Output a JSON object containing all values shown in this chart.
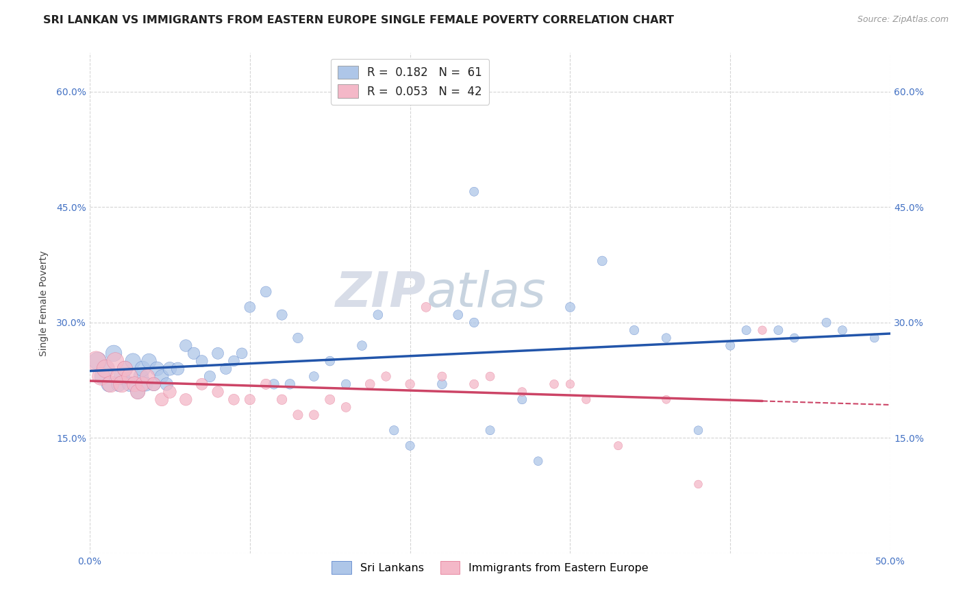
{
  "title": "SRI LANKAN VS IMMIGRANTS FROM EASTERN EUROPE SINGLE FEMALE POVERTY CORRELATION CHART",
  "source": "Source: ZipAtlas.com",
  "ylabel": "Single Female Poverty",
  "xlim": [
    0.0,
    0.5
  ],
  "ylim": [
    0.0,
    0.65
  ],
  "x_ticks": [
    0.0,
    0.1,
    0.2,
    0.3,
    0.4,
    0.5
  ],
  "x_tick_labels": [
    "0.0%",
    "",
    "",
    "",
    "",
    "50.0%"
  ],
  "y_ticks": [
    0.0,
    0.15,
    0.3,
    0.45,
    0.6
  ],
  "y_tick_labels": [
    "",
    "15.0%",
    "30.0%",
    "45.0%",
    "60.0%"
  ],
  "sri_lankans": {
    "R": 0.182,
    "N": 61,
    "color": "#aec6e8",
    "edge_color": "#4472c4",
    "line_color": "#2255aa",
    "label": "Sri Lankans",
    "x": [
      0.005,
      0.008,
      0.01,
      0.012,
      0.015,
      0.018,
      0.02,
      0.022,
      0.025,
      0.027,
      0.03,
      0.032,
      0.033,
      0.035,
      0.037,
      0.04,
      0.042,
      0.045,
      0.048,
      0.05,
      0.055,
      0.06,
      0.065,
      0.07,
      0.075,
      0.08,
      0.085,
      0.09,
      0.095,
      0.1,
      0.11,
      0.115,
      0.12,
      0.125,
      0.13,
      0.14,
      0.15,
      0.16,
      0.17,
      0.18,
      0.19,
      0.2,
      0.22,
      0.23,
      0.24,
      0.25,
      0.27,
      0.28,
      0.3,
      0.32,
      0.34,
      0.36,
      0.38,
      0.4,
      0.41,
      0.43,
      0.44,
      0.46,
      0.47,
      0.49,
      0.24
    ],
    "y": [
      0.25,
      0.23,
      0.24,
      0.22,
      0.26,
      0.22,
      0.23,
      0.24,
      0.22,
      0.25,
      0.21,
      0.23,
      0.24,
      0.22,
      0.25,
      0.22,
      0.24,
      0.23,
      0.22,
      0.24,
      0.24,
      0.27,
      0.26,
      0.25,
      0.23,
      0.26,
      0.24,
      0.25,
      0.26,
      0.32,
      0.34,
      0.22,
      0.31,
      0.22,
      0.28,
      0.23,
      0.25,
      0.22,
      0.27,
      0.31,
      0.16,
      0.14,
      0.22,
      0.31,
      0.3,
      0.16,
      0.2,
      0.12,
      0.32,
      0.38,
      0.29,
      0.28,
      0.16,
      0.27,
      0.29,
      0.29,
      0.28,
      0.3,
      0.29,
      0.28,
      0.47
    ],
    "sizes": [
      350,
      280,
      320,
      260,
      290,
      240,
      280,
      260,
      240,
      260,
      220,
      240,
      260,
      220,
      240,
      200,
      220,
      200,
      180,
      200,
      180,
      160,
      160,
      150,
      140,
      150,
      140,
      130,
      130,
      130,
      130,
      110,
      120,
      110,
      110,
      100,
      100,
      95,
      100,
      100,
      95,
      90,
      100,
      100,
      95,
      90,
      90,
      85,
      100,
      100,
      95,
      90,
      85,
      90,
      90,
      90,
      85,
      90,
      88,
      85,
      90
    ]
  },
  "eastern_europe": {
    "R": 0.053,
    "N": 42,
    "color": "#f4b8c8",
    "edge_color": "#e06888",
    "line_color": "#cc4466",
    "label": "Immigrants from Eastern Europe",
    "x": [
      0.004,
      0.007,
      0.01,
      0.013,
      0.016,
      0.018,
      0.02,
      0.022,
      0.025,
      0.028,
      0.03,
      0.033,
      0.036,
      0.04,
      0.045,
      0.05,
      0.06,
      0.07,
      0.08,
      0.09,
      0.1,
      0.11,
      0.12,
      0.13,
      0.14,
      0.15,
      0.16,
      0.175,
      0.185,
      0.2,
      0.21,
      0.22,
      0.24,
      0.25,
      0.27,
      0.29,
      0.31,
      0.33,
      0.36,
      0.38,
      0.42,
      0.3
    ],
    "y": [
      0.25,
      0.23,
      0.24,
      0.22,
      0.25,
      0.23,
      0.22,
      0.24,
      0.23,
      0.22,
      0.21,
      0.22,
      0.23,
      0.22,
      0.2,
      0.21,
      0.2,
      0.22,
      0.21,
      0.2,
      0.2,
      0.22,
      0.2,
      0.18,
      0.18,
      0.2,
      0.19,
      0.22,
      0.23,
      0.22,
      0.32,
      0.23,
      0.22,
      0.23,
      0.21,
      0.22,
      0.2,
      0.14,
      0.2,
      0.09,
      0.29,
      0.22
    ],
    "sizes": [
      420,
      340,
      360,
      300,
      320,
      280,
      300,
      260,
      280,
      250,
      240,
      220,
      230,
      200,
      190,
      180,
      160,
      150,
      140,
      130,
      120,
      120,
      110,
      105,
      100,
      105,
      100,
      100,
      95,
      95,
      100,
      90,
      90,
      88,
      85,
      85,
      80,
      78,
      75,
      72,
      80,
      80
    ]
  },
  "watermark_zip": "ZIP",
  "watermark_atlas": "atlas",
  "background_color": "#ffffff",
  "grid_color": "#d0d0d0",
  "title_fontsize": 11.5,
  "axis_label_fontsize": 10,
  "tick_fontsize": 10,
  "legend_fontsize": 12
}
